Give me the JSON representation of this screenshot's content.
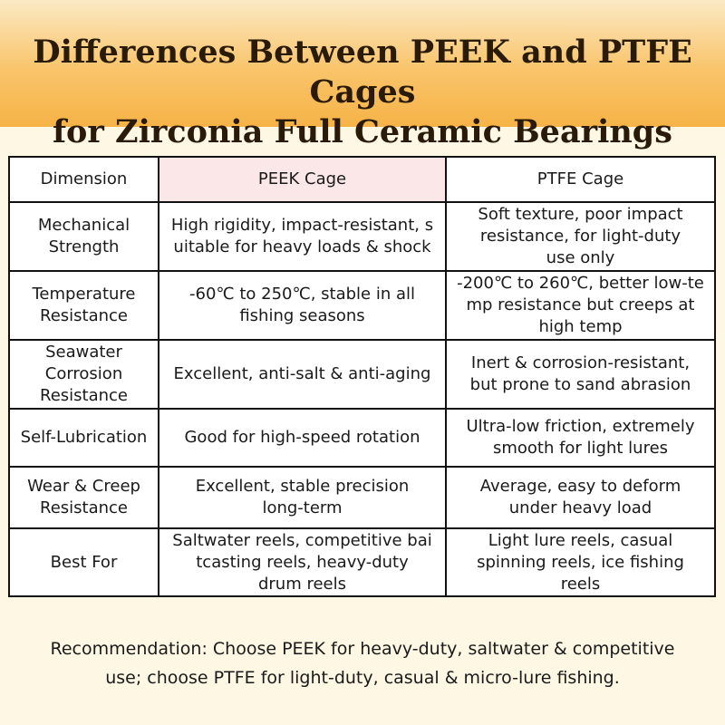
{
  "title": {
    "line1": "Differences Between PEEK and PTFE Cages",
    "line2": "for Zirconia Full Ceramic Bearings"
  },
  "table": {
    "headers": [
      "Dimension",
      "PEEK Cage",
      "PTFE Cage"
    ],
    "rows": [
      {
        "dimension": [
          "Mechanical",
          "Strength"
        ],
        "peek": [
          "High rigidity, impact-resistant, s",
          "uitable for heavy loads & shock"
        ],
        "ptfe": [
          "Soft texture, poor impact",
          "resistance, for light-duty",
          "use only"
        ]
      },
      {
        "dimension": [
          "Temperature",
          "Resistance"
        ],
        "peek": [
          "-60℃ to 250℃, stable in all",
          "fishing seasons"
        ],
        "ptfe": [
          "-200℃ to 260℃, better low-te",
          "mp resistance but creeps at",
          "high temp"
        ]
      },
      {
        "dimension": [
          "Seawater",
          "Corrosion",
          "Resistance"
        ],
        "peek": [
          "Excellent, anti-salt & anti-aging"
        ],
        "ptfe": [
          "Inert & corrosion-resistant,",
          "but prone to sand abrasion"
        ]
      },
      {
        "dimension": [
          "Self-Lubrication"
        ],
        "peek": [
          "Good for high-speed rotation"
        ],
        "ptfe": [
          "Ultra-low friction, extremely",
          "smooth for light lures"
        ]
      },
      {
        "dimension": [
          "Wear & Creep",
          "Resistance"
        ],
        "peek": [
          "Excellent, stable precision",
          "long-term"
        ],
        "ptfe": [
          "Average, easy to deform",
          "under heavy load"
        ]
      },
      {
        "dimension": [
          "Best For"
        ],
        "peek": [
          "Saltwater reels, competitive bai",
          "tcasting reels, heavy-duty",
          "drum reels"
        ],
        "ptfe": [
          "Light lure reels, casual",
          "spinning reels, ice fishing",
          "reels"
        ]
      }
    ]
  },
  "recommendation": {
    "line1": "Recommendation: Choose PEEK for heavy-duty, saltwater & competitive",
    "line2": "use; choose PTFE for light-duty, casual & micro-lure fishing."
  }
}
